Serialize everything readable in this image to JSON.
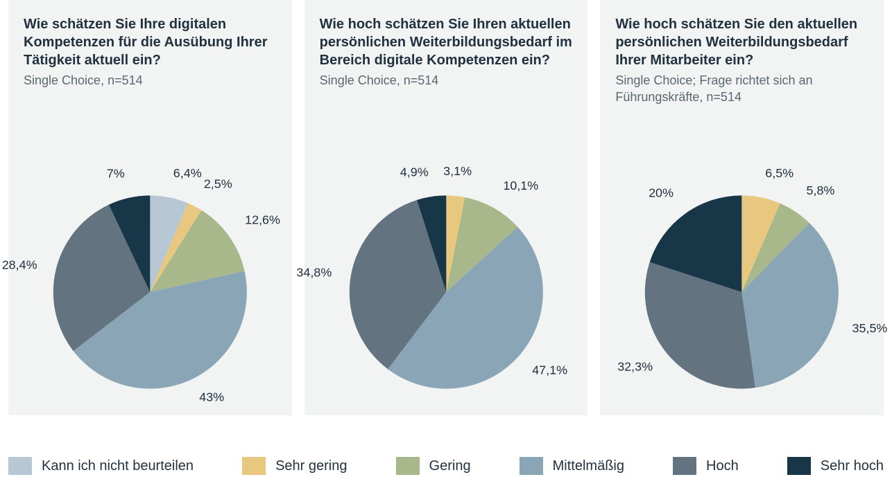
{
  "page_background": "#ffffff",
  "panel_background": "#f2f3f3",
  "title_color": "#21313f",
  "subtitle_color": "#5a6770",
  "label_color": "#21313f",
  "legend": [
    {
      "key": "kann_nicht",
      "label": "Kann ich nicht beurteilen",
      "color": "#b7c7d4"
    },
    {
      "key": "sehr_gering",
      "label": "Sehr gering",
      "color": "#e7c87e"
    },
    {
      "key": "gering",
      "label": "Gering",
      "color": "#a8b88a"
    },
    {
      "key": "mittel",
      "label": "Mittelmäßig",
      "color": "#8aa5b6"
    },
    {
      "key": "hoch",
      "label": "Hoch",
      "color": "#637380"
    },
    {
      "key": "sehr_hoch",
      "label": "Sehr hoch",
      "color": "#173647"
    }
  ],
  "charts": [
    {
      "title": "Wie schätzen Sie Ihre digitalen Kompetenzen für die Ausübung Ihrer Tätigkeit aktuell ein?",
      "subtitle": "Single Choice, n=514",
      "type": "pie",
      "radius": 140,
      "start_angle_deg": 0,
      "label_fontsize": 18,
      "slices": [
        {
          "key": "kann_nicht",
          "value": 6.4,
          "label": "6,4%"
        },
        {
          "key": "sehr_gering",
          "value": 2.5,
          "label": "2,5%"
        },
        {
          "key": "gering",
          "value": 12.6,
          "label": "12,6%"
        },
        {
          "key": "mittel",
          "value": 43,
          "label": "43%"
        },
        {
          "key": "hoch",
          "value": 28.4,
          "label": "28,4%"
        },
        {
          "key": "sehr_hoch",
          "value": 7,
          "label": "7%"
        }
      ]
    },
    {
      "title": "Wie hoch schätzen Sie Ihren aktuellen persönlichen Weiterbildungsbedarf im Bereich digitale Kompetenzen ein?",
      "subtitle": "Single Choice, n=514",
      "type": "pie",
      "radius": 140,
      "start_angle_deg": 0,
      "label_fontsize": 18,
      "slices": [
        {
          "key": "sehr_gering",
          "value": 3.1,
          "label": "3,1%"
        },
        {
          "key": "gering",
          "value": 10.1,
          "label": "10,1%"
        },
        {
          "key": "mittel",
          "value": 47.1,
          "label": "47,1%"
        },
        {
          "key": "hoch",
          "value": 34.8,
          "label": "34,8%"
        },
        {
          "key": "sehr_hoch",
          "value": 4.9,
          "label": "4,9%"
        }
      ]
    },
    {
      "title": "Wie hoch schätzen Sie den aktuellen persönlichen Weiterbildungsbedarf Ihrer Mitarbeiter ein?",
      "subtitle": "Single Choice; Frage richtet sich an Führungskräfte, n=514",
      "type": "pie",
      "radius": 140,
      "start_angle_deg": 0,
      "label_fontsize": 18,
      "slices": [
        {
          "key": "sehr_gering",
          "value": 6.5,
          "label": "6,5%"
        },
        {
          "key": "gering",
          "value": 5.8,
          "label": "5,8%"
        },
        {
          "key": "mittel",
          "value": 35.5,
          "label": "35,5%"
        },
        {
          "key": "hoch",
          "value": 32.3,
          "label": "32,3%"
        },
        {
          "key": "sehr_hoch",
          "value": 20,
          "label": "20%"
        }
      ]
    }
  ]
}
